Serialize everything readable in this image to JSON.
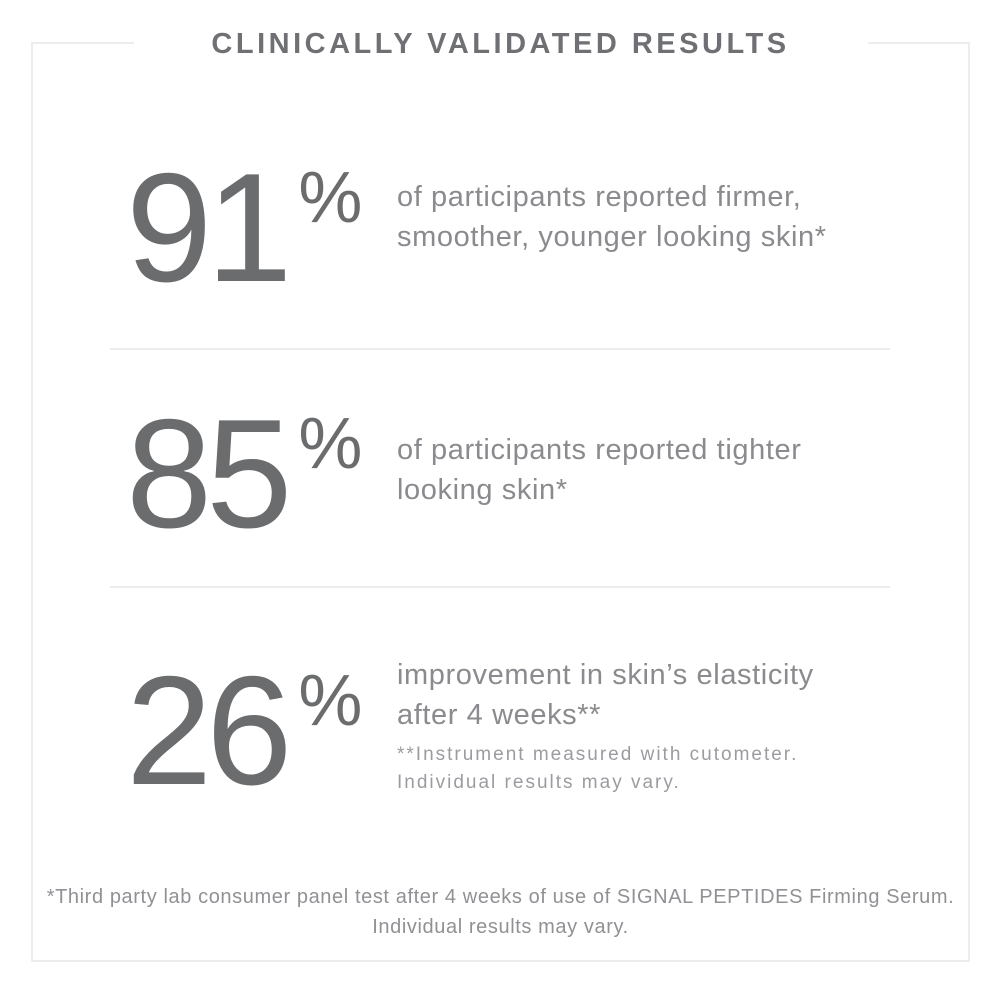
{
  "title": "CLINICALLY VALIDATED RESULTS",
  "stats": [
    {
      "value": "91",
      "unit": "%",
      "lines": [
        "of participants reported firmer,",
        "smoother, younger looking skin*"
      ]
    },
    {
      "value": "85",
      "unit": "%",
      "lines": [
        "of participants reported tighter",
        "looking skin*"
      ]
    },
    {
      "value": "26",
      "unit": "%",
      "lines": [
        "improvement in skin’s elasticity",
        "after 4 weeks**"
      ],
      "footnote_lines": [
        "**Instrument measured with cutometer.",
        "Individual results may vary."
      ]
    }
  ],
  "footer_lines": [
    "*Third party lab consumer panel test after 4 weeks of use of SIGNAL PEPTIDES Firming Serum.",
    "Individual results may vary."
  ],
  "colors": {
    "stat_number": "#6b6c6e",
    "heading": "#6f7073",
    "body_text": "#8a8b8e",
    "footnote_text": "#9b9ca0",
    "border_and_dividers": "#ededed"
  }
}
